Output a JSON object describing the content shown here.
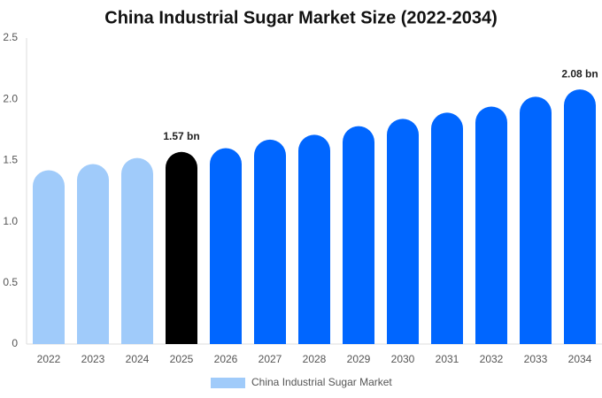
{
  "chart_data": {
    "type": "bar",
    "title": "China Industrial Sugar Market Size (2022-2034)",
    "categories": [
      "2022",
      "2023",
      "2024",
      "2025",
      "2026",
      "2027",
      "2028",
      "2029",
      "2030",
      "2031",
      "2032",
      "2033",
      "2034"
    ],
    "series": [
      {
        "name": "China Industrial Sugar Market",
        "color": "#a0cbfa",
        "values": [
          1.42,
          1.47,
          1.52,
          1.57,
          1.6,
          1.67,
          1.71,
          1.78,
          1.84,
          1.89,
          1.94,
          2.02,
          2.08
        ],
        "value_labels": [
          null,
          null,
          null,
          "1.57 bn",
          null,
          null,
          null,
          null,
          null,
          null,
          null,
          null,
          "2.08 bn"
        ],
        "colors": [
          "#a0cbfa",
          "#a0cbfa",
          "#a0cbfa",
          "#000000",
          "#0066ff",
          "#0066ff",
          "#0066ff",
          "#0066ff",
          "#0066ff",
          "#0066ff",
          "#0066ff",
          "#0066ff",
          "#0066ff"
        ]
      }
    ],
    "ylim": [
      0,
      2.5
    ],
    "yticks": [
      0,
      0.5,
      {
        "value": 1,
        "label": "1.0"
      },
      1.5,
      {
        "value": 2,
        "label": "2.0"
      },
      2.5
    ],
    "grid": false
  }
}
